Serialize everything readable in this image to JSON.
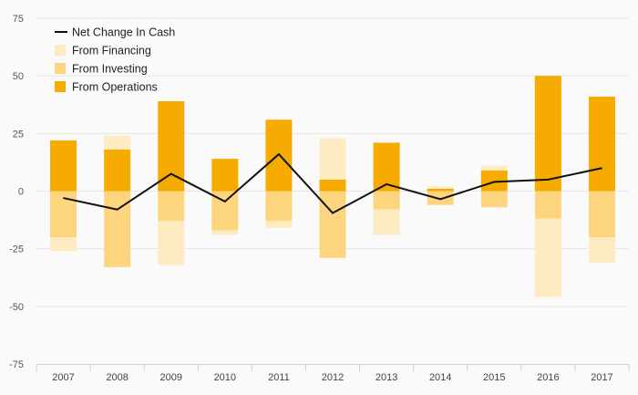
{
  "chart_data": {
    "type": "bar",
    "categories": [
      "2007",
      "2008",
      "2009",
      "2010",
      "2011",
      "2012",
      "2013",
      "2014",
      "2015",
      "2016",
      "2017"
    ],
    "series": [
      {
        "name": "From Operations",
        "color": "#f5ab00",
        "values": [
          22,
          18,
          39,
          14,
          31,
          5,
          21,
          1,
          9,
          50,
          41
        ]
      },
      {
        "name": "From Investing",
        "color": "#fdd57f",
        "values": [
          -20,
          -33,
          -13,
          -17,
          -13,
          -29,
          -8,
          -6,
          -7,
          -12,
          -20
        ]
      },
      {
        "name": "From Financing",
        "color": "#feebc2",
        "values": [
          -6,
          6,
          -19,
          -2,
          -3,
          18,
          -11,
          1,
          2,
          -34,
          -11
        ]
      },
      {
        "name": "Net Change In Cash",
        "type": "line",
        "color": "#111111",
        "values": [
          -3,
          -8,
          7.5,
          -4.5,
          16,
          -9.5,
          3,
          -3.5,
          4,
          5,
          10
        ]
      }
    ],
    "legend": [
      "Net Change In Cash",
      "From Financing",
      "From Investing",
      "From Operations"
    ],
    "legend_position": "top-left",
    "y_ticks": [
      "75",
      "50",
      "25",
      "0",
      "-25",
      "-50",
      "-75"
    ],
    "ylim": [
      -75,
      75
    ],
    "grid": true
  }
}
